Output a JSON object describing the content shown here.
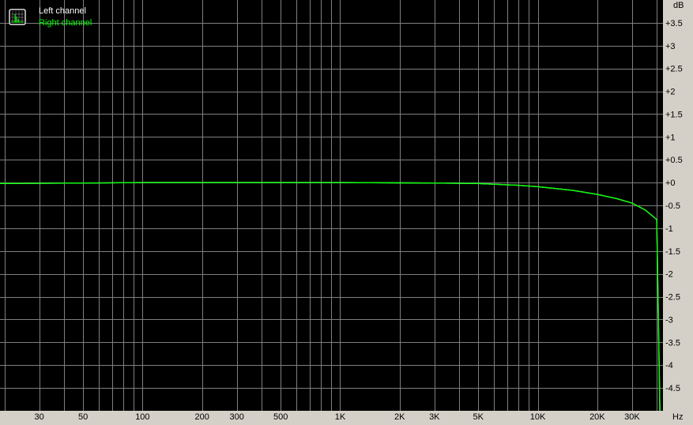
{
  "chart_data": {
    "type": "line",
    "title": "",
    "xlabel": "Hz",
    "ylabel": "dB",
    "x_scale": "log",
    "xlim": [
      19,
      43000
    ],
    "ylim": [
      -5,
      4
    ],
    "grid": true,
    "legend_placement": "top-left",
    "x_ticks": [
      {
        "v": 30,
        "label": "30"
      },
      {
        "v": 50,
        "label": "50"
      },
      {
        "v": 100,
        "label": "100"
      },
      {
        "v": 200,
        "label": "200"
      },
      {
        "v": 300,
        "label": "300"
      },
      {
        "v": 500,
        "label": "500"
      },
      {
        "v": 1000,
        "label": "1K"
      },
      {
        "v": 2000,
        "label": "2K"
      },
      {
        "v": 3000,
        "label": "3K"
      },
      {
        "v": 5000,
        "label": "5K"
      },
      {
        "v": 10000,
        "label": "10K"
      },
      {
        "v": 20000,
        "label": "20K"
      },
      {
        "v": 30000,
        "label": "30K"
      }
    ],
    "y_ticks": [
      {
        "v": 3.5,
        "label": "+3.5"
      },
      {
        "v": 3,
        "label": "+3"
      },
      {
        "v": 2.5,
        "label": "+2.5"
      },
      {
        "v": 2,
        "label": "+2"
      },
      {
        "v": 1.5,
        "label": "+1.5"
      },
      {
        "v": 1,
        "label": "+1"
      },
      {
        "v": 0.5,
        "label": "+0.5"
      },
      {
        "v": 0,
        "label": "+0"
      },
      {
        "v": -0.5,
        "label": "-0.5"
      },
      {
        "v": -1,
        "label": "-1"
      },
      {
        "v": -1.5,
        "label": "-1.5"
      },
      {
        "v": -2,
        "label": "-2"
      },
      {
        "v": -2.5,
        "label": "-2.5"
      },
      {
        "v": -3,
        "label": "-3"
      },
      {
        "v": -3.5,
        "label": "-3.5"
      },
      {
        "v": -4,
        "label": "-4"
      },
      {
        "v": -4.5,
        "label": "-4.5"
      }
    ],
    "series": [
      {
        "name": "Left channel",
        "color": "#ffffff",
        "x": [
          19,
          50,
          100,
          1000,
          3000,
          5000,
          8000,
          10000,
          15000,
          20000,
          25000,
          30000,
          35000,
          40000,
          41500
        ],
        "y": [
          -0.02,
          -0.01,
          0,
          0,
          -0.01,
          -0.02,
          -0.06,
          -0.09,
          -0.17,
          -0.26,
          -0.35,
          -0.45,
          -0.6,
          -0.81,
          -5
        ]
      },
      {
        "name": "Right channel",
        "color": "#00ff00",
        "x": [
          19,
          50,
          100,
          1000,
          3000,
          5000,
          8000,
          10000,
          15000,
          20000,
          25000,
          30000,
          35000,
          40000,
          41500
        ],
        "y": [
          -0.02,
          -0.01,
          0,
          0,
          -0.01,
          -0.02,
          -0.06,
          -0.09,
          -0.17,
          -0.26,
          -0.35,
          -0.45,
          -0.6,
          -0.81,
          -5
        ]
      }
    ]
  },
  "colors": {
    "plot_bg": "#000000",
    "grid": "#7f7f7f",
    "panel_bg": "#d4d0c8"
  },
  "legend_icon": "spectrum-chart-icon"
}
